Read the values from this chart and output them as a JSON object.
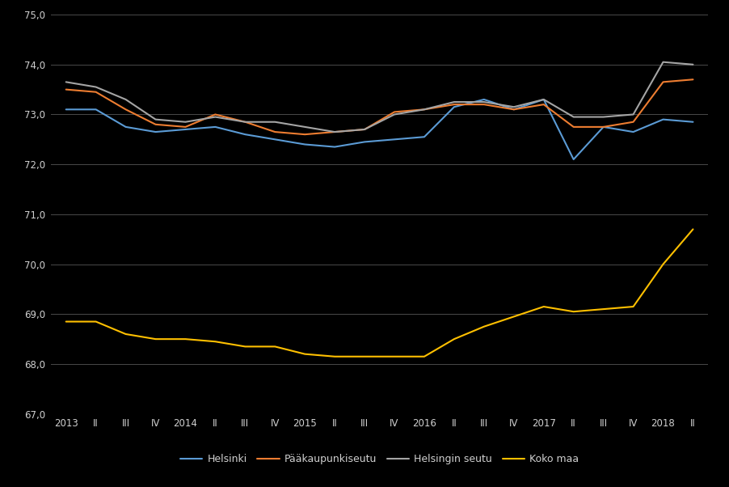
{
  "background_color": "#000000",
  "text_color": "#d0d0d0",
  "grid_color": "#4a4a4a",
  "line_colors": {
    "Helsinki": "#5B9BD5",
    "Pääkaupunkiseutu": "#ED7D31",
    "Helsingin seutu": "#A5A5A5",
    "Koko maa": "#FFC000"
  },
  "x_labels": [
    "2013",
    "II",
    "III",
    "IV",
    "2014",
    "II",
    "III",
    "IV",
    "2015",
    "II",
    "III",
    "IV",
    "2016",
    "II",
    "III",
    "IV",
    "2017",
    "II",
    "III",
    "IV",
    "2018",
    "II"
  ],
  "Helsinki": [
    73.1,
    73.1,
    72.75,
    72.65,
    72.7,
    72.75,
    72.6,
    72.5,
    72.4,
    72.35,
    72.45,
    72.5,
    72.55,
    73.15,
    73.3,
    73.1,
    73.3,
    72.1,
    72.75,
    72.65,
    72.9,
    72.85
  ],
  "Pääkaupunkiseutu": [
    73.5,
    73.45,
    73.1,
    72.8,
    72.75,
    73.0,
    72.85,
    72.65,
    72.6,
    72.65,
    72.7,
    73.05,
    73.1,
    73.2,
    73.2,
    73.1,
    73.2,
    72.75,
    72.75,
    72.85,
    73.65,
    73.7
  ],
  "Helsingin seutu": [
    73.65,
    73.55,
    73.3,
    72.9,
    72.85,
    72.95,
    72.85,
    72.85,
    72.75,
    72.65,
    72.7,
    73.0,
    73.1,
    73.25,
    73.25,
    73.15,
    73.3,
    72.95,
    72.95,
    73.0,
    74.05,
    74.0
  ],
  "Koko maa": [
    68.85,
    68.85,
    68.6,
    68.5,
    68.5,
    68.45,
    68.35,
    68.35,
    68.2,
    68.15,
    68.15,
    68.15,
    68.15,
    68.5,
    68.75,
    68.95,
    69.15,
    69.05,
    69.1,
    69.15,
    70.0,
    70.7
  ],
  "ylim": [
    67.0,
    75.0
  ],
  "yticks": [
    67.0,
    68.0,
    69.0,
    70.0,
    71.0,
    72.0,
    73.0,
    74.0,
    75.0
  ],
  "legend_labels": [
    "Helsinki",
    "Pääkaupunkiseutu",
    "Helsingin seutu",
    "Koko maa"
  ],
  "figsize": [
    9.03,
    6.02
  ],
  "dpi": 100
}
